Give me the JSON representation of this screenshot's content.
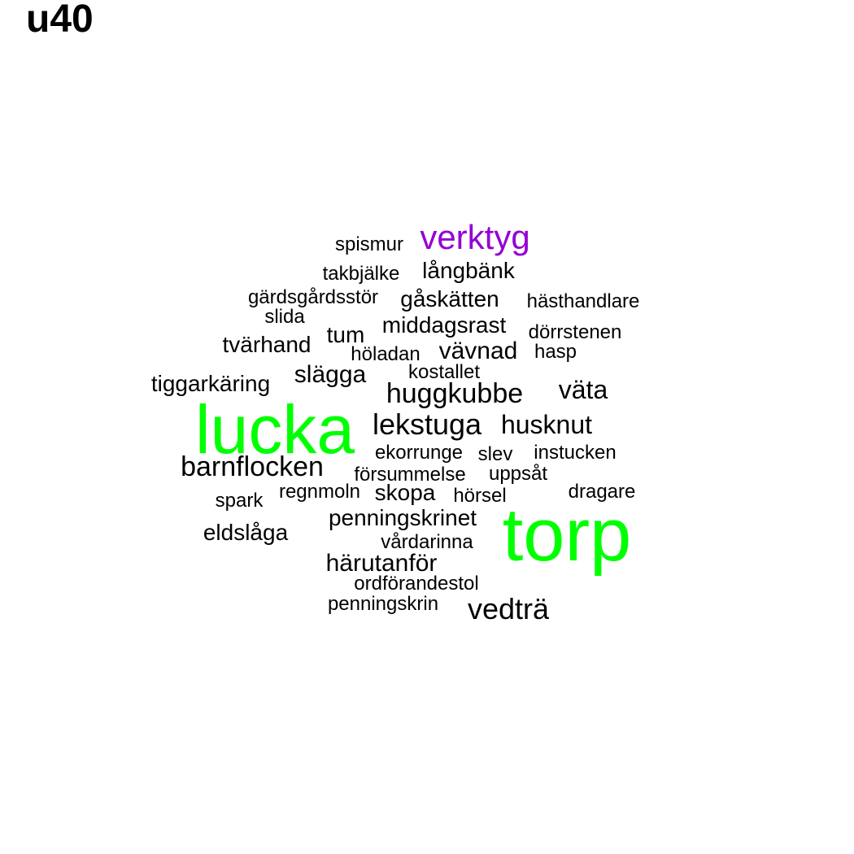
{
  "title": "u40",
  "colors": {
    "default": "#000000",
    "highlight_green": "#00ff00",
    "highlight_purple": "#9400d3"
  },
  "words": [
    {
      "text": "torp",
      "color": "#00ff00"
    },
    {
      "text": "lucka",
      "color": "#00ff00"
    },
    {
      "text": "verktyg",
      "color": "#9400d3"
    },
    {
      "text": "spismur",
      "color": "#000000"
    },
    {
      "text": "takbjälke",
      "color": "#000000"
    },
    {
      "text": "långbänk",
      "color": "#000000"
    },
    {
      "text": "gärdsgårdsstör",
      "color": "#000000"
    },
    {
      "text": "gåskätten",
      "color": "#000000"
    },
    {
      "text": "hästhandlare",
      "color": "#000000"
    },
    {
      "text": "slida",
      "color": "#000000"
    },
    {
      "text": "middagsrast",
      "color": "#000000"
    },
    {
      "text": "dörrstenen",
      "color": "#000000"
    },
    {
      "text": "tvärhand",
      "color": "#000000"
    },
    {
      "text": "tum",
      "color": "#000000"
    },
    {
      "text": "höladan",
      "color": "#000000"
    },
    {
      "text": "vävnad",
      "color": "#000000"
    },
    {
      "text": "hasp",
      "color": "#000000"
    },
    {
      "text": "kostallet",
      "color": "#000000"
    },
    {
      "text": "slägga",
      "color": "#000000"
    },
    {
      "text": "tiggarkäring",
      "color": "#000000"
    },
    {
      "text": "huggkubbe",
      "color": "#000000"
    },
    {
      "text": "väta",
      "color": "#000000"
    },
    {
      "text": "lekstuga",
      "color": "#000000"
    },
    {
      "text": "husknut",
      "color": "#000000"
    },
    {
      "text": "ekorrunge",
      "color": "#000000"
    },
    {
      "text": "slev",
      "color": "#000000"
    },
    {
      "text": "instucken",
      "color": "#000000"
    },
    {
      "text": "barnflocken",
      "color": "#000000"
    },
    {
      "text": "försummelse",
      "color": "#000000"
    },
    {
      "text": "uppsåt",
      "color": "#000000"
    },
    {
      "text": "spark",
      "color": "#000000"
    },
    {
      "text": "regnmoln",
      "color": "#000000"
    },
    {
      "text": "skopa",
      "color": "#000000"
    },
    {
      "text": "hörsel",
      "color": "#000000"
    },
    {
      "text": "dragare",
      "color": "#000000"
    },
    {
      "text": "penningskrinet",
      "color": "#000000"
    },
    {
      "text": "eldslåga",
      "color": "#000000"
    },
    {
      "text": "vårdarinna",
      "color": "#000000"
    },
    {
      "text": "härutanför",
      "color": "#000000"
    },
    {
      "text": "ordförandestol",
      "color": "#000000"
    },
    {
      "text": "penningskrin",
      "color": "#000000"
    },
    {
      "text": "vedträ",
      "color": "#000000"
    }
  ]
}
